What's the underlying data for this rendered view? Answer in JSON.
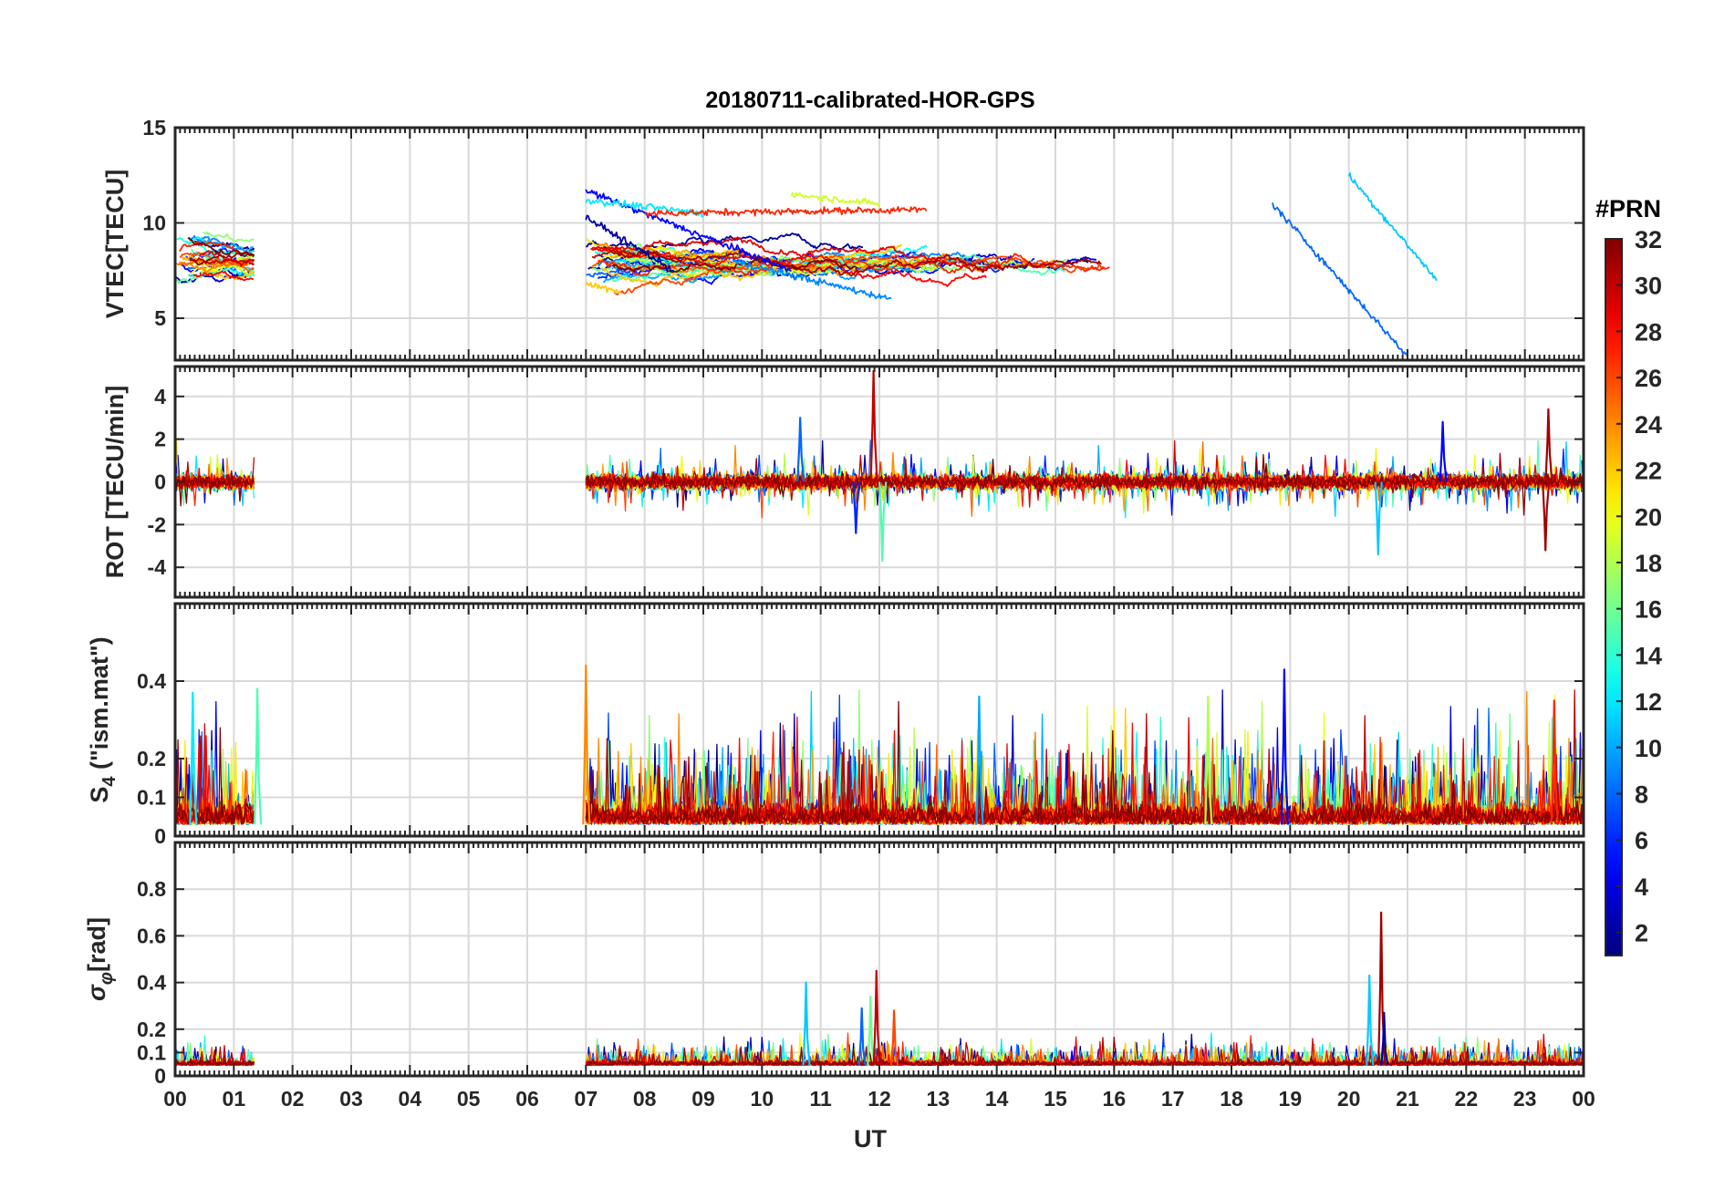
{
  "chart_data": {
    "type": "line",
    "title": "20180711-calibrated-HOR-GPS",
    "xlabel": "UT",
    "x_tick_labels": [
      "00",
      "01",
      "02",
      "03",
      "04",
      "05",
      "06",
      "07",
      "08",
      "09",
      "10",
      "11",
      "12",
      "13",
      "14",
      "15",
      "16",
      "17",
      "18",
      "19",
      "20",
      "21",
      "22",
      "23",
      "00"
    ],
    "xlim_hours": [
      0,
      24
    ],
    "colorbar": {
      "title": "#PRN",
      "range": [
        1,
        32
      ],
      "ticks": [
        "2",
        "4",
        "6",
        "8",
        "10",
        "12",
        "14",
        "16",
        "18",
        "20",
        "22",
        "24",
        "26",
        "28",
        "30",
        "32"
      ],
      "colormap": "jet"
    },
    "data_segments_hours": [
      [
        0.0,
        1.35
      ],
      [
        7.0,
        24.0
      ]
    ],
    "grid": true,
    "panels": [
      {
        "id": "vtec",
        "ylabel": "VTEC[TECU]",
        "ylim": [
          2.8,
          15
        ],
        "yticks": [
          "5",
          "10",
          "15"
        ],
        "base_level": 8.0,
        "series_summary": [
          {
            "prn": 2,
            "t_start": 7.0,
            "t_end": 8.5,
            "y_start": 10.3,
            "y_end": 7.5
          },
          {
            "prn": 5,
            "t_start": 7.0,
            "t_end": 10.5,
            "y_start": 11.7,
            "y_end": 7.5
          },
          {
            "prn": 9,
            "t_start": 9.5,
            "t_end": 12.2,
            "y_start": 8.0,
            "y_end": 6.0
          },
          {
            "prn": 12,
            "t_start": 7.0,
            "t_end": 9.0,
            "y_start": 11.2,
            "y_end": 10.5
          },
          {
            "prn": 19,
            "t_start": 10.5,
            "t_end": 12.0,
            "y_start": 11.5,
            "y_end": 11.0
          },
          {
            "prn": 22,
            "t_start": 7.0,
            "t_end": 7.6,
            "y_start": 6.8,
            "y_end": 6.4
          },
          {
            "prn": 27,
            "t_start": 8.0,
            "t_end": 12.8,
            "y_start": 10.5,
            "y_end": 10.7
          },
          {
            "prn": 8,
            "t_start": 18.7,
            "t_end": 21.0,
            "y_start": 11.0,
            "y_end": 3.0
          },
          {
            "prn": 11,
            "t_start": 20.0,
            "t_end": 21.5,
            "y_start": 12.5,
            "y_end": 7.0
          }
        ]
      },
      {
        "id": "rot",
        "ylabel": "ROT [TECU/min]",
        "ylim": [
          -5.4,
          5.4
        ],
        "yticks": [
          "-4",
          "-2",
          "0",
          "2",
          "4"
        ],
        "peaks": [
          {
            "prn": 8,
            "t": 10.65,
            "value": 3.0
          },
          {
            "prn": 6,
            "t": 11.6,
            "value": -2.4
          },
          {
            "prn": 30,
            "t": 11.9,
            "value": 5.2
          },
          {
            "prn": 15,
            "t": 12.05,
            "value": -3.7
          },
          {
            "prn": 11,
            "t": 20.5,
            "value": -3.4
          },
          {
            "prn": 5,
            "t": 21.6,
            "value": 2.8
          },
          {
            "prn": 31,
            "t": 23.4,
            "value": 3.4
          },
          {
            "prn": 31,
            "t": 23.35,
            "value": -3.2
          }
        ]
      },
      {
        "id": "s4",
        "ylabel": "S4 (\"ism.mat\")",
        "ylabel_main": "S",
        "ylabel_sub": "4",
        "ylabel_rest": " (\"ism.mat\")",
        "ylim": [
          0,
          0.6
        ],
        "yticks": [
          "0",
          "0.1",
          "0.2",
          "0.4"
        ],
        "peaks": [
          {
            "prn": 12,
            "t": 0.3,
            "value": 0.37
          },
          {
            "prn": 15,
            "t": 1.4,
            "value": 0.38
          },
          {
            "prn": 24,
            "t": 7.0,
            "value": 0.44
          },
          {
            "prn": 10,
            "t": 13.7,
            "value": 0.36
          },
          {
            "prn": 18,
            "t": 17.6,
            "value": 0.36
          },
          {
            "prn": 5,
            "t": 18.9,
            "value": 0.43
          },
          {
            "prn": 27,
            "t": 23.5,
            "value": 0.35
          }
        ]
      },
      {
        "id": "sigma_phi",
        "ylabel": "σφ[rad]",
        "ylabel_main": "σ",
        "ylabel_sub": "φ",
        "ylabel_rest": "[rad]",
        "ylim": [
          0,
          1
        ],
        "yticks": [
          "0",
          "0.1",
          "0.2",
          "0.4",
          "0.6",
          "0.8"
        ],
        "peaks": [
          {
            "prn": 11,
            "t": 10.75,
            "value": 0.4
          },
          {
            "prn": 8,
            "t": 11.7,
            "value": 0.29
          },
          {
            "prn": 16,
            "t": 11.85,
            "value": 0.34
          },
          {
            "prn": 30,
            "t": 11.95,
            "value": 0.45
          },
          {
            "prn": 26,
            "t": 12.25,
            "value": 0.28
          },
          {
            "prn": 11,
            "t": 20.35,
            "value": 0.43
          },
          {
            "prn": 31,
            "t": 20.55,
            "value": 0.7
          },
          {
            "prn": 2,
            "t": 20.6,
            "value": 0.27
          }
        ]
      }
    ]
  }
}
